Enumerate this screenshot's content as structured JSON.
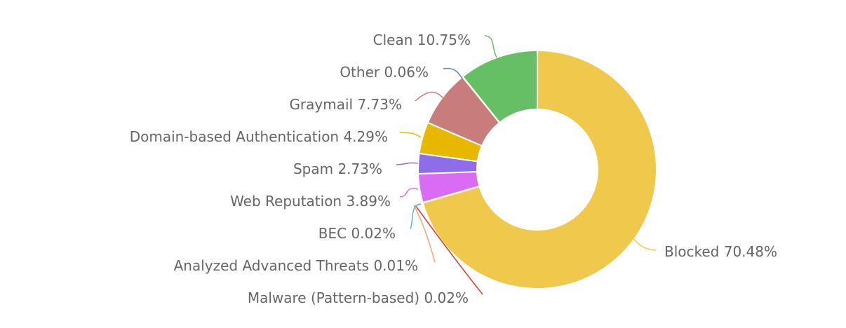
{
  "chart_data": {
    "type": "pie",
    "donut": true,
    "title": "",
    "slices": [
      {
        "name": "Blocked",
        "value": 70.48,
        "label": "Blocked 70.48%",
        "color": "#f0c84b"
      },
      {
        "name": "Malware (Pattern-based)",
        "value": 0.02,
        "label": "Malware (Pattern-based) 0.02%",
        "color": "#e03a2e"
      },
      {
        "name": "Analyzed Advanced Threats",
        "value": 0.01,
        "label": "Analyzed Advanced Threats 0.01%",
        "color": "#f4a27b"
      },
      {
        "name": "BEC",
        "value": 0.02,
        "label": "BEC 0.02%",
        "color": "#6aaec7"
      },
      {
        "name": "Web Reputation",
        "value": 3.89,
        "label": "Web Reputation 3.89%",
        "color": "#d96cf2"
      },
      {
        "name": "Spam",
        "value": 2.73,
        "label": "Spam 2.73%",
        "color": "#8f6ce8"
      },
      {
        "name": "Domain-based Authentication",
        "value": 4.29,
        "label": "Domain-based Authentication 4.29%",
        "color": "#e8b800"
      },
      {
        "name": "Graymail",
        "value": 7.73,
        "label": "Graymail 7.73%",
        "color": "#c87d7a"
      },
      {
        "name": "Other",
        "value": 0.06,
        "label": "Other 0.06%",
        "color": "#5b86d6"
      },
      {
        "name": "Clean",
        "value": 10.75,
        "label": "Clean 10.75%",
        "color": "#66bf64"
      }
    ]
  }
}
